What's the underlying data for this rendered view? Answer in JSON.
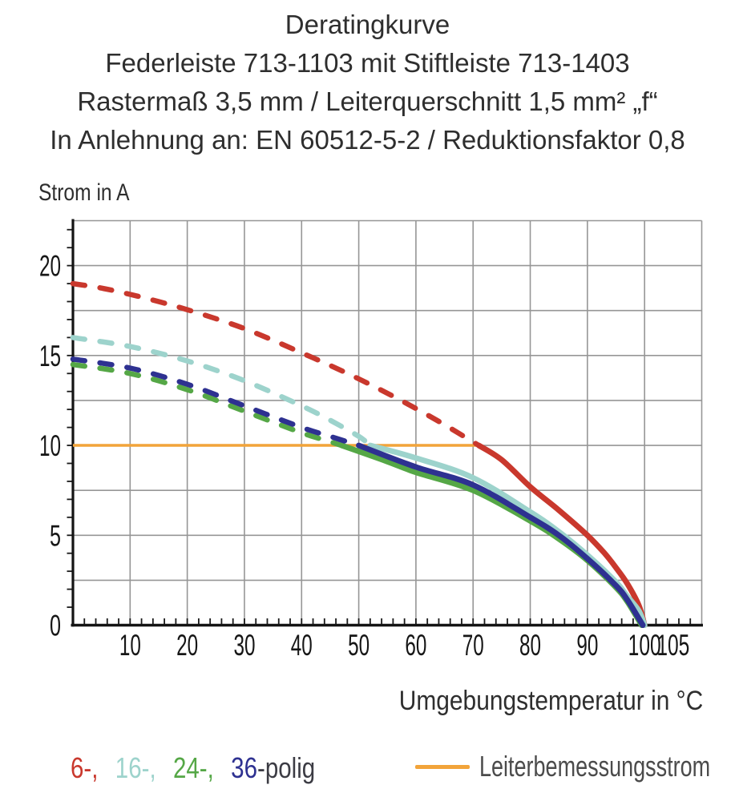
{
  "header": {
    "lines": [
      "Deratingkurve",
      "Federleiste 713-1103 mit Stiftleiste 713-1403",
      "Rastermaß 3,5 mm / Leiterquerschnitt 1,5 mm² „f“",
      "In Anlehnung an: EN 60512-5-2 / Reduktionsfaktor 0,8"
    ]
  },
  "chart_data": {
    "type": "line",
    "title": "Deratingkurve",
    "ylabel": "Strom in A",
    "xlabel": "Umgebungstemperatur in °C",
    "xlim": [
      0,
      110
    ],
    "ylim": [
      0,
      22.5
    ],
    "grid": {
      "x_major": 10,
      "y_major": 2.5,
      "x_minor": 2,
      "y_minor": 1,
      "color": "#969696"
    },
    "xticks": {
      "values": [
        10,
        20,
        30,
        40,
        50,
        60,
        70,
        80,
        90,
        100,
        105
      ],
      "labels": [
        "10",
        "20",
        "30",
        "40",
        "50",
        "60",
        "70",
        "80",
        "90",
        "100",
        "105"
      ]
    },
    "yticks": {
      "values": [
        0,
        5,
        10,
        15,
        20
      ],
      "labels": [
        "0",
        "5",
        "10",
        "15",
        "20"
      ]
    },
    "series": [
      {
        "name": "6-polig",
        "color": "#c9382d",
        "dashed": [
          [
            0,
            19
          ],
          [
            5,
            18.75
          ],
          [
            10,
            18.4
          ],
          [
            15,
            18.0
          ],
          [
            20,
            17.55
          ],
          [
            25,
            17.05
          ],
          [
            30,
            16.5
          ],
          [
            35,
            15.85
          ],
          [
            40,
            15.15
          ],
          [
            45,
            14.45
          ],
          [
            50,
            13.7
          ],
          [
            55,
            12.9
          ],
          [
            60,
            12.05
          ],
          [
            65,
            11.15
          ],
          [
            71,
            10
          ]
        ],
        "solid": [
          [
            71,
            10
          ],
          [
            75,
            9.2
          ],
          [
            80,
            7.7
          ],
          [
            85,
            6.4
          ],
          [
            90,
            5.0
          ],
          [
            93,
            4.0
          ],
          [
            95,
            3.2
          ],
          [
            97,
            2.3
          ],
          [
            99,
            1.1
          ],
          [
            100,
            0
          ]
        ]
      },
      {
        "name": "16-polig",
        "color": "#9dd3cc",
        "dashed": [
          [
            0,
            16
          ],
          [
            10,
            15.5
          ],
          [
            20,
            14.7
          ],
          [
            30,
            13.6
          ],
          [
            40,
            12.2
          ],
          [
            45,
            11.4
          ],
          [
            50,
            10.5
          ],
          [
            52,
            10
          ]
        ],
        "solid": [
          [
            52,
            10
          ],
          [
            60,
            9.3
          ],
          [
            70,
            8.2
          ],
          [
            80,
            6.3
          ],
          [
            85,
            5.2
          ],
          [
            90,
            3.9
          ],
          [
            95,
            2.4
          ],
          [
            97,
            1.6
          ],
          [
            99,
            0.8
          ],
          [
            100,
            0
          ]
        ]
      },
      {
        "name": "24-polig",
        "color": "#55a746",
        "dashed": [
          [
            0,
            14.5
          ],
          [
            10,
            14.0
          ],
          [
            20,
            13.1
          ],
          [
            30,
            11.9
          ],
          [
            40,
            10.7
          ],
          [
            44,
            10.3
          ],
          [
            47,
            10
          ]
        ],
        "solid": [
          [
            47,
            10
          ],
          [
            55,
            9.1
          ],
          [
            60,
            8.5
          ],
          [
            70,
            7.5
          ],
          [
            80,
            5.8
          ],
          [
            85,
            4.8
          ],
          [
            90,
            3.6
          ],
          [
            95,
            2.1
          ],
          [
            97,
            1.3
          ],
          [
            99.5,
            0
          ]
        ]
      },
      {
        "name": "36-polig",
        "color": "#2e3191",
        "dashed": [
          [
            0,
            14.8
          ],
          [
            10,
            14.3
          ],
          [
            20,
            13.4
          ],
          [
            30,
            12.2
          ],
          [
            40,
            11.0
          ],
          [
            45,
            10.5
          ],
          [
            50,
            10
          ]
        ],
        "solid": [
          [
            50,
            10
          ],
          [
            60,
            8.8
          ],
          [
            70,
            7.8
          ],
          [
            80,
            6.0
          ],
          [
            85,
            5.0
          ],
          [
            90,
            3.7
          ],
          [
            95,
            2.2
          ],
          [
            97,
            1.4
          ],
          [
            99.7,
            0
          ]
        ]
      }
    ],
    "limit_line": {
      "label": "Leiterbemessungsstrom",
      "color": "#f2a43a",
      "y": 10,
      "x_from": 0,
      "x_to": 71
    }
  },
  "legend": {
    "items": [
      {
        "text": "6-,",
        "color": "#c9382d"
      },
      {
        "text": "16-,",
        "color": "#9dd3cc"
      },
      {
        "text": "24-,",
        "color": "#55a746"
      },
      {
        "text": "36",
        "color": "#2e3191"
      },
      {
        "text": "-polig",
        "color": "#3c3c44"
      }
    ]
  }
}
